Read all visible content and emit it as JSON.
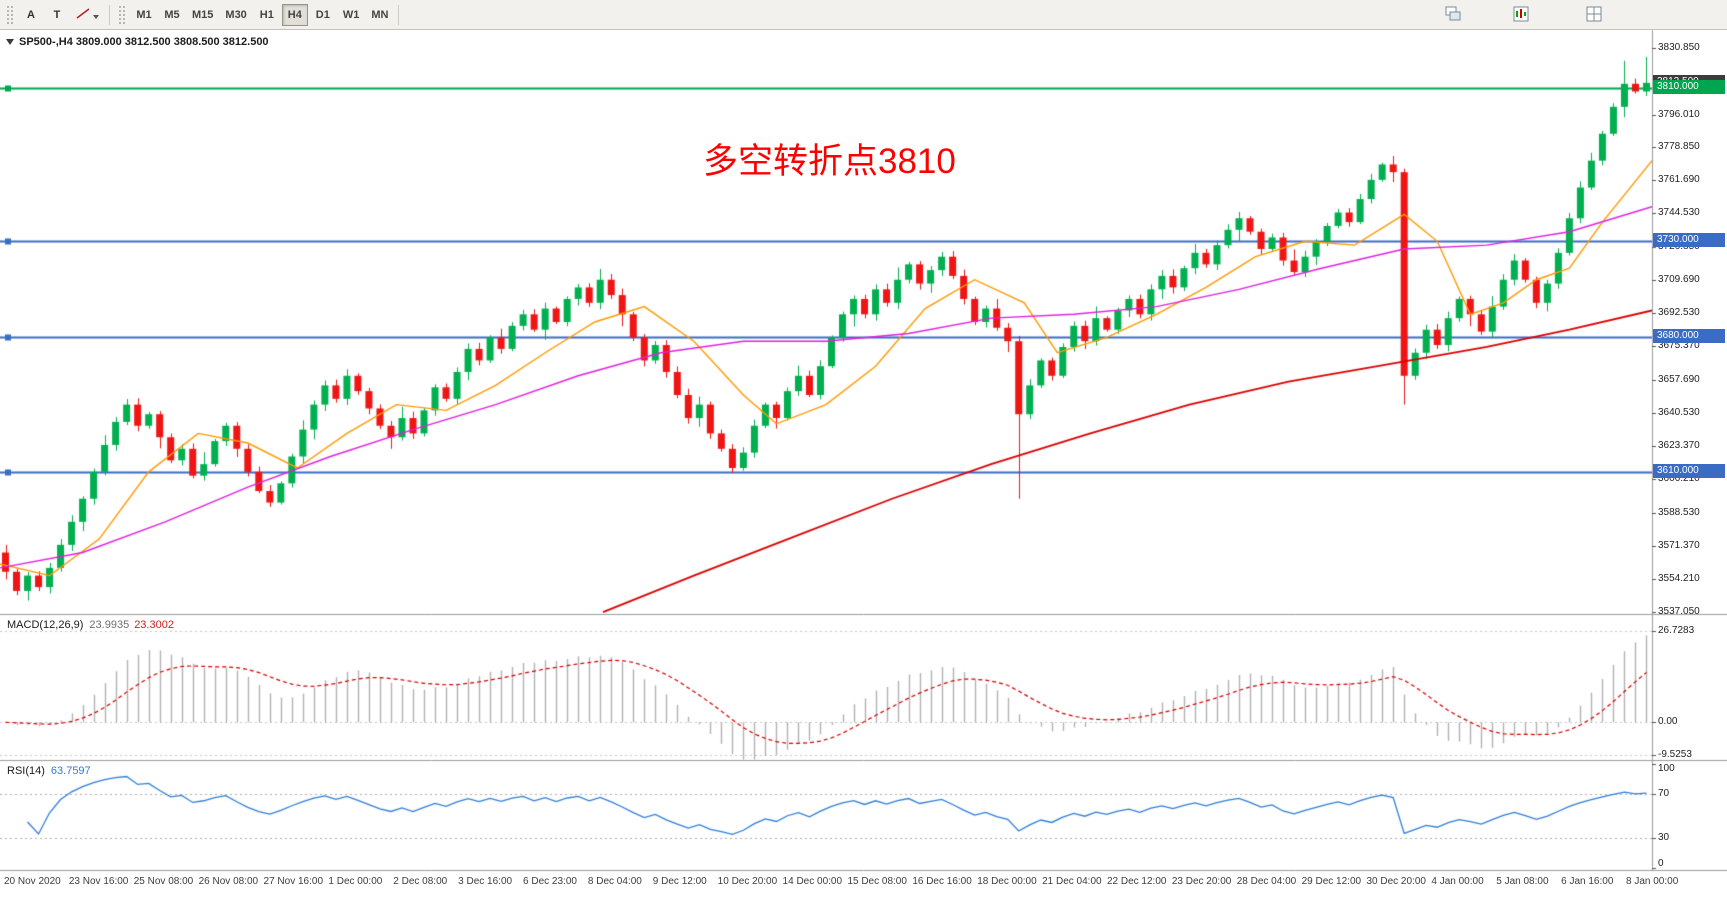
{
  "toolbar": {
    "tools": [
      "A",
      "T"
    ],
    "timeframes": [
      "M1",
      "M5",
      "M15",
      "M30",
      "H1",
      "H4",
      "D1",
      "W1",
      "MN"
    ],
    "active_timeframe": "H4"
  },
  "chart": {
    "title": "SP500-,H4  3809.000 3812.500 3808.500 3812.500",
    "annotation": "多空转折点3810",
    "annotation_color": "#ff0000",
    "price_min": 3536,
    "price_max": 3840,
    "price_axis_labels": [
      "3830.850",
      "3796.010",
      "3778.850",
      "3761.690",
      "3744.530",
      "3726.850",
      "3709.690",
      "3692.530",
      "3675.370",
      "3657.690",
      "3640.530",
      "3623.370",
      "3606.210",
      "3588.530",
      "3571.370",
      "3554.210",
      "3537.050"
    ],
    "current_price_badge": {
      "label": "3812.500",
      "price": 3812.5,
      "color": "#3c3c3c"
    },
    "hlines": [
      {
        "price": 3810,
        "label": "3810.000",
        "color": "#00a550"
      },
      {
        "price": 3730,
        "label": "3730.000",
        "color": "#3b6cc4"
      },
      {
        "price": 3680,
        "label": "3680.000",
        "color": "#3b6cc4"
      },
      {
        "price": 3610,
        "label": "3610.000",
        "color": "#3b6cc4"
      }
    ],
    "time_axis_labels": [
      "20 Nov 2020",
      "23 Nov 16:00",
      "25 Nov 08:00",
      "26 Nov 08:00",
      "27 Nov 16:00",
      "1 Dec 00:00",
      "2 Dec 08:00",
      "3 Dec 16:00",
      "6 Dec 23:00",
      "8 Dec 04:00",
      "9 Dec 12:00",
      "10 Dec 20:00",
      "14 Dec 00:00",
      "15 Dec 08:00",
      "16 Dec 16:00",
      "18 Dec 00:00",
      "21 Dec 04:00",
      "22 Dec 12:00",
      "23 Dec 20:00",
      "28 Dec 04:00",
      "29 Dec 12:00",
      "30 Dec 20:00",
      "4 Jan 00:00",
      "5 Jan 08:00",
      "6 Jan 16:00",
      "8 Jan 00:00"
    ]
  },
  "macd": {
    "label": "MACD(12,26,9)",
    "value_main": "23.9935",
    "value_signal": "23.3002",
    "axis_labels": [
      "26.7283",
      "0.00",
      "-9.5253"
    ],
    "range_min": -11,
    "range_max": 31,
    "histogram_color": "#b2b2b2",
    "signal_color": "#d40000"
  },
  "rsi": {
    "label": "RSI(14)",
    "value": "63.7597",
    "axis_labels": [
      "100",
      "70",
      "30",
      "0"
    ],
    "levels": [
      70,
      30
    ],
    "line_color": "#2f7ed8"
  },
  "chart_data": {
    "type": "candlestick",
    "symbol": "SP500-",
    "timeframe": "H4",
    "last_ohlc": {
      "open": 3809.0,
      "high": 3812.5,
      "low": 3808.5,
      "close": 3812.5
    },
    "up_color": "#00b050",
    "down_color": "#ef1515",
    "first_open": 3568,
    "closes": [
      3558,
      3548,
      3556,
      3550,
      3560,
      3572,
      3584,
      3596,
      3610,
      3624,
      3636,
      3645,
      3634,
      3640,
      3628,
      3616,
      3622,
      3608,
      3614,
      3626,
      3634,
      3622,
      3610,
      3600,
      3594,
      3604,
      3618,
      3632,
      3645,
      3655,
      3648,
      3660,
      3652,
      3643,
      3634,
      3628,
      3638,
      3630,
      3642,
      3654,
      3648,
      3662,
      3674,
      3668,
      3680,
      3674,
      3686,
      3692,
      3684,
      3695,
      3688,
      3700,
      3706,
      3698,
      3710,
      3702,
      3692,
      3680,
      3668,
      3676,
      3662,
      3650,
      3638,
      3645,
      3630,
      3622,
      3612,
      3620,
      3634,
      3645,
      3638,
      3652,
      3660,
      3650,
      3665,
      3680,
      3692,
      3700,
      3692,
      3705,
      3698,
      3710,
      3718,
      3708,
      3715,
      3722,
      3712,
      3700,
      3688,
      3695,
      3685,
      3678,
      3640,
      3655,
      3668,
      3660,
      3675,
      3686,
      3678,
      3690,
      3684,
      3694,
      3700,
      3692,
      3705,
      3712,
      3706,
      3716,
      3724,
      3718,
      3728,
      3736,
      3742,
      3735,
      3726,
      3732,
      3720,
      3714,
      3722,
      3730,
      3738,
      3745,
      3740,
      3752,
      3762,
      3770,
      3766,
      3660,
      3672,
      3684,
      3676,
      3690,
      3700,
      3692,
      3683,
      3696,
      3710,
      3720,
      3710,
      3698,
      3708,
      3724,
      3742,
      3758,
      3772,
      3786,
      3800,
      3812,
      3808,
      3812.5
    ],
    "wick_overrides": {
      "2": {
        "low": 3543
      },
      "92": {
        "low": 3596
      },
      "127": {
        "low": 3645
      },
      "147": {
        "high": 3824
      },
      "149": {
        "high": 3826
      }
    },
    "ma_lines": [
      {
        "name": "ma-fast-orange",
        "color": "#ff9900",
        "points": [
          [
            0,
            3562
          ],
          [
            0.03,
            3556
          ],
          [
            0.06,
            3575
          ],
          [
            0.09,
            3610
          ],
          [
            0.12,
            3630
          ],
          [
            0.15,
            3625
          ],
          [
            0.18,
            3612
          ],
          [
            0.21,
            3630
          ],
          [
            0.24,
            3645
          ],
          [
            0.27,
            3642
          ],
          [
            0.3,
            3655
          ],
          [
            0.33,
            3672
          ],
          [
            0.36,
            3688
          ],
          [
            0.39,
            3696
          ],
          [
            0.42,
            3678
          ],
          [
            0.45,
            3650
          ],
          [
            0.47,
            3635
          ],
          [
            0.5,
            3645
          ],
          [
            0.53,
            3665
          ],
          [
            0.56,
            3695
          ],
          [
            0.59,
            3710
          ],
          [
            0.62,
            3698
          ],
          [
            0.64,
            3672
          ],
          [
            0.67,
            3680
          ],
          [
            0.7,
            3692
          ],
          [
            0.73,
            3706
          ],
          [
            0.76,
            3722
          ],
          [
            0.79,
            3730
          ],
          [
            0.82,
            3728
          ],
          [
            0.85,
            3744
          ],
          [
            0.87,
            3730
          ],
          [
            0.89,
            3692
          ],
          [
            0.91,
            3698
          ],
          [
            0.93,
            3710
          ],
          [
            0.95,
            3716
          ],
          [
            0.97,
            3740
          ],
          [
            1,
            3772
          ]
        ]
      },
      {
        "name": "ma-mid-magenta",
        "color": "#e020e0",
        "points": [
          [
            0,
            3560
          ],
          [
            0.05,
            3568
          ],
          [
            0.1,
            3584
          ],
          [
            0.15,
            3602
          ],
          [
            0.2,
            3618
          ],
          [
            0.25,
            3632
          ],
          [
            0.3,
            3645
          ],
          [
            0.35,
            3660
          ],
          [
            0.4,
            3672
          ],
          [
            0.45,
            3678
          ],
          [
            0.5,
            3678
          ],
          [
            0.55,
            3682
          ],
          [
            0.6,
            3690
          ],
          [
            0.65,
            3692
          ],
          [
            0.7,
            3696
          ],
          [
            0.75,
            3705
          ],
          [
            0.8,
            3716
          ],
          [
            0.85,
            3726
          ],
          [
            0.9,
            3728
          ],
          [
            0.95,
            3735
          ],
          [
            1,
            3748
          ]
        ]
      },
      {
        "name": "ma-slow-red",
        "color": "#dd0000",
        "points": [
          [
            0.365,
            3537
          ],
          [
            0.42,
            3556
          ],
          [
            0.48,
            3576
          ],
          [
            0.54,
            3596
          ],
          [
            0.6,
            3614
          ],
          [
            0.66,
            3630
          ],
          [
            0.72,
            3645
          ],
          [
            0.78,
            3657
          ],
          [
            0.84,
            3666
          ],
          [
            0.9,
            3675
          ],
          [
            0.95,
            3684
          ],
          [
            1,
            3694
          ]
        ]
      }
    ],
    "indicators": [
      {
        "type": "MACD",
        "params": [
          12,
          26,
          9
        ],
        "display_main": 23.9935,
        "display_signal": 23.3002,
        "scale_max": 26.7283,
        "scale_min": -9.5253
      },
      {
        "type": "RSI",
        "params": [
          14
        ],
        "display": 63.7597,
        "levels": [
          70,
          30
        ]
      }
    ]
  }
}
